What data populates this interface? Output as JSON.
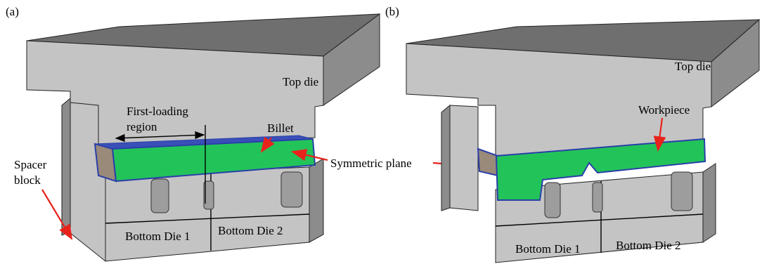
{
  "panels": [
    {
      "label": "(a)",
      "top_die": "Top die",
      "first_loading_region": [
        "First-loading",
        "region"
      ],
      "billet": "Billet",
      "spacer_block": [
        "Spacer",
        "block"
      ],
      "bottom_die_1": "Bottom Die 1",
      "bottom_die_2": "Bottom Die 2"
    },
    {
      "label": "(b)",
      "top_die": "Top die",
      "workpiece": "Workpiece",
      "bottom_die_1": "Bottom Die 1",
      "bottom_die_2": "Bottom Die 2"
    }
  ],
  "shared": {
    "symmetric_plane": "Symmetric plane"
  }
}
